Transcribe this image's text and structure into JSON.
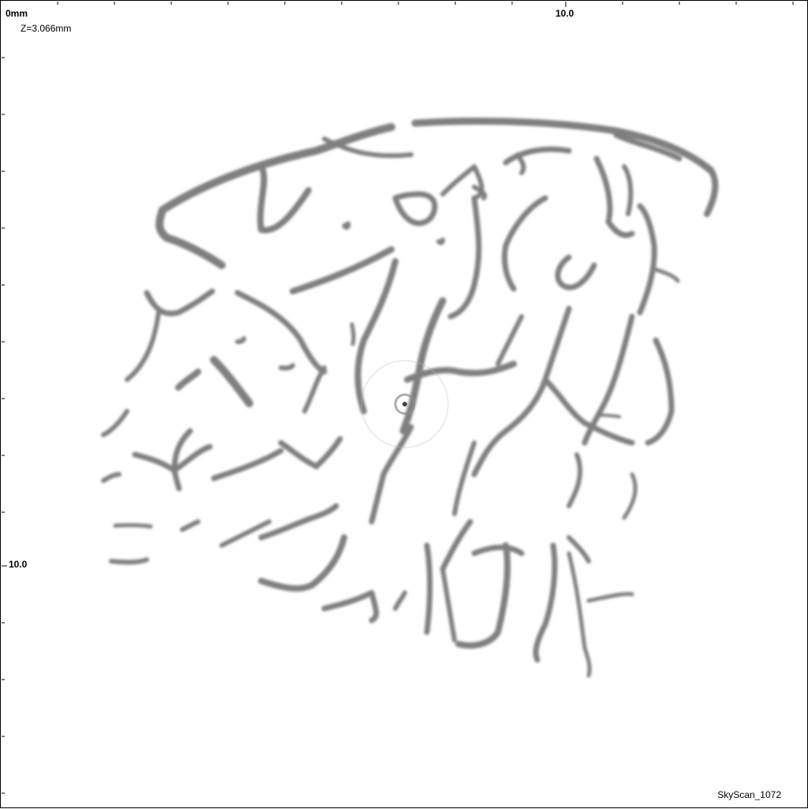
{
  "image": {
    "origin_label": "0mm",
    "slice_position": "Z=3.066mm",
    "x_axis_tick": "10.0",
    "y_axis_tick": "10.0",
    "scanner_model": "SkyScan_1072"
  },
  "colors": {
    "background": "#ffffff",
    "bone": "#6e6e6e",
    "frame": "#000000"
  }
}
